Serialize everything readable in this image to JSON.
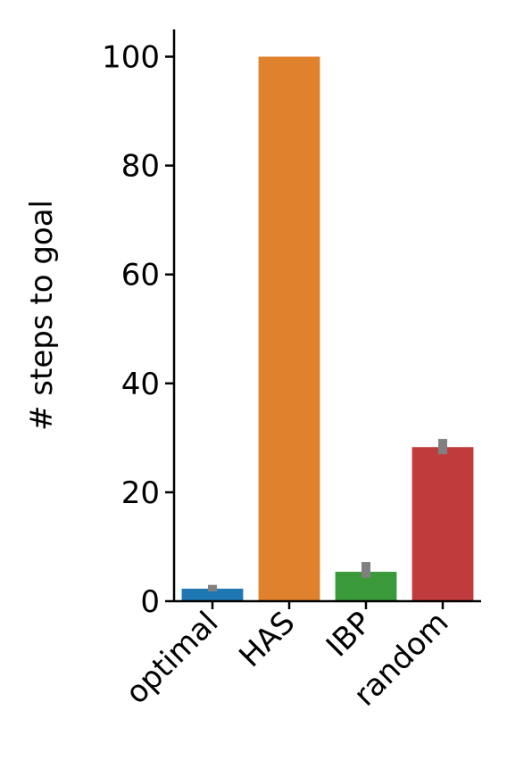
{
  "chart_data": {
    "type": "bar",
    "title": "",
    "xlabel": "",
    "ylabel": "# steps to goal",
    "categories": [
      "optimal",
      "HAS",
      "IBP",
      "random"
    ],
    "values": [
      2.3,
      100,
      5.4,
      28.3
    ],
    "error_ranges": [
      [
        1.8,
        3.0
      ],
      [
        100,
        100
      ],
      [
        4.3,
        7.2
      ],
      [
        27.0,
        29.8
      ]
    ],
    "colors": [
      "#1f77b4",
      "#e0812d",
      "#3a9a3a",
      "#c03c3c"
    ],
    "error_color": "#808080",
    "ylim": [
      0,
      105
    ],
    "yticks": [
      0,
      20,
      40,
      60,
      80,
      100
    ],
    "grid": false,
    "legend": "none"
  }
}
